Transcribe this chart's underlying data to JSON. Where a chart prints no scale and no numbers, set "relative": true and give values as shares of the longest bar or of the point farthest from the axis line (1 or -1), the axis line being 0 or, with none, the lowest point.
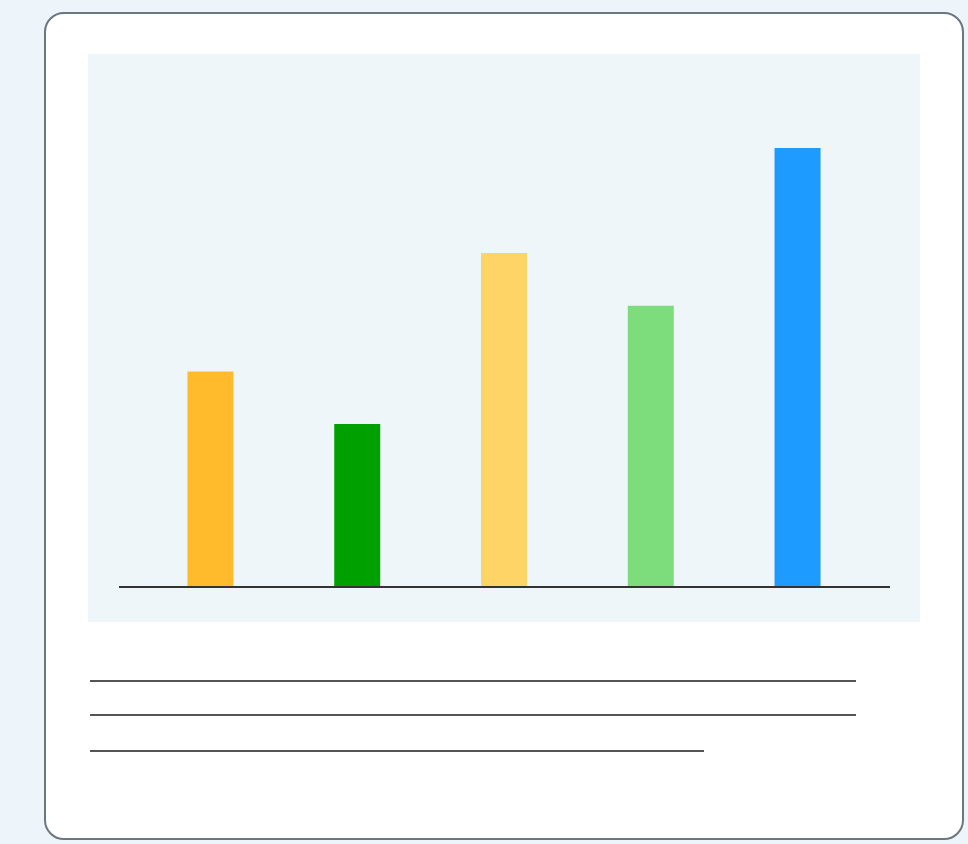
{
  "chart_data": {
    "type": "bar",
    "relative": true,
    "categories": [
      null,
      null,
      null,
      null,
      null
    ],
    "values": [
      0.49,
      0.37,
      0.76,
      0.64,
      1
    ],
    "colors": [
      "#ffbb2c",
      "#00a000",
      "#ffd466",
      "#7ddd7d",
      "#1e9bff"
    ],
    "grid": false
  }
}
